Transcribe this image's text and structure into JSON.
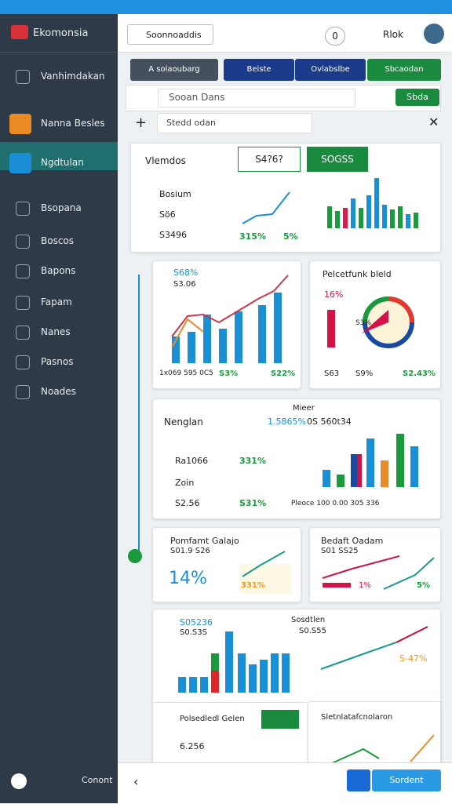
{
  "sidebar": {
    "app_name": "Ekomonsia",
    "items": [
      "Vanhimdakan",
      "Nanna Besles",
      "Ngdtulan",
      "Bsopana",
      "Boscos",
      "Bapons",
      "Fapam",
      "Nanes",
      "Pasnos",
      "Noades"
    ],
    "footer": "Conont"
  },
  "header": {
    "search": "Soonnoaddis",
    "badge": "0",
    "user": "Rlok"
  },
  "tabs": [
    "A solaoubarg",
    "Beiste",
    "Ovlabslbe",
    "Sbcaodan"
  ],
  "search_row": {
    "placeholder": "Sooan Dans",
    "button": "Sbda"
  },
  "filter": {
    "placeholder": "Stedd odan"
  },
  "cards": [
    {
      "title": "Vlemdos",
      "input": "S4?6?",
      "button": "SOGSS",
      "legend": [
        "Bosium",
        "Sö6",
        "S3496"
      ],
      "values": [
        "315%",
        "5%"
      ]
    },
    {
      "title": "S68%",
      "subtitle": "S3.06",
      "footer": [
        "1x069 595 0C5",
        "S3%",
        "S22%"
      ]
    },
    {
      "title": "Pelcetfunk bleld",
      "value": "16%",
      "inner": "S3%",
      "footer": [
        "S63",
        "S9%",
        "S2.43%"
      ]
    },
    {
      "title": "Nenglan",
      "top": "Mieer",
      "stats": [
        "1.5865%",
        "0S 560t34"
      ],
      "items": [
        [
          "Ra1066",
          "331%"
        ],
        [
          "Zoin",
          ""
        ],
        [
          "S2.56",
          "S31%"
        ]
      ],
      "footer": "Pleoce 100 0.00 305 336"
    },
    {
      "title": "Pomfamt Galajo",
      "subtitle": "S01.9 S26",
      "value": "14%",
      "change": "331%"
    },
    {
      "title": "Bedaft Oadam",
      "subtitle": "S01 SS25",
      "value": "1%",
      "change": "5%"
    },
    {
      "title": "S05236",
      "subtitle": "S0.S3S",
      "legend": "Sosdtlen",
      "legend_value": "S0.S55",
      "sub_title": "Polsedledl Gelen",
      "sub_value": "6.256",
      "change": "S-47%"
    },
    {
      "title": "Sletnlatafcnolaron"
    }
  ],
  "bottom": {
    "button": "Sordent"
  }
}
